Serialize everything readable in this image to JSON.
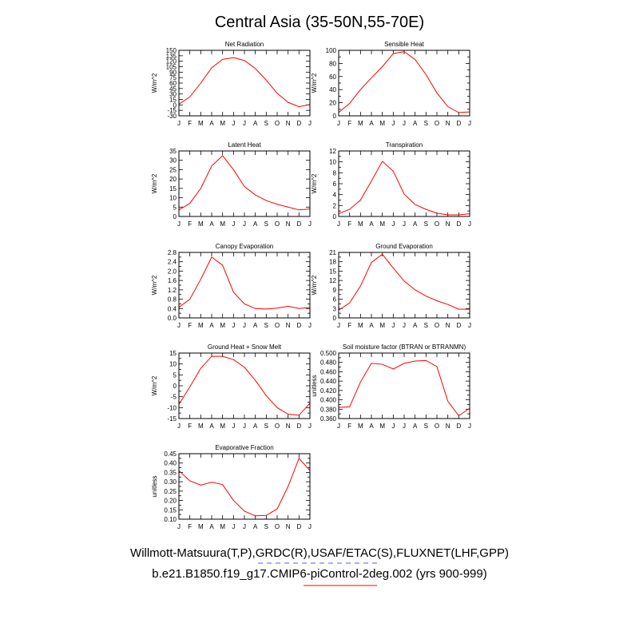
{
  "page": {
    "title": "Central Asia (35-50N,55-70E)",
    "legend_line1": "Willmott-Matsuura(T,P),GRDC(R),USAF/ETAC(S),FLUXNET(LHF,GPP)",
    "legend_line2": "b.e21.B1850.f19_g17.CMIP6-piControl-2deg.002 (yrs 900-999)",
    "legend_line1_color": "#5a5aff",
    "legend_line2_color": "#ff0000",
    "series_color": "#ff0000"
  },
  "chart_data": [
    {
      "type": "line",
      "title": "Net Radiation",
      "ylabel": "W/m^2",
      "x": [
        "J",
        "F",
        "M",
        "A",
        "M",
        "J",
        "J",
        "A",
        "S",
        "O",
        "N",
        "D",
        "J"
      ],
      "ylim": [
        -30,
        150
      ],
      "yticks": [
        -30,
        -15,
        0,
        15,
        30,
        45,
        60,
        75,
        90,
        105,
        120,
        135,
        150
      ],
      "ytick_labels": [
        "-30",
        "-15",
        "0",
        "15",
        "30",
        "45",
        "60",
        "75",
        "90",
        "105",
        "120",
        "135",
        "150"
      ],
      "values": [
        2,
        22,
        60,
        102,
        125,
        130,
        122,
        100,
        68,
        32,
        7,
        -5,
        1
      ]
    },
    {
      "type": "line",
      "title": "Sensible Heat",
      "ylabel": "W/m^2",
      "x": [
        "J",
        "F",
        "M",
        "A",
        "M",
        "J",
        "J",
        "A",
        "S",
        "O",
        "N",
        "D",
        "J"
      ],
      "ylim": [
        0,
        100
      ],
      "yticks": [
        0,
        10,
        20,
        30,
        40,
        50,
        60,
        70,
        80,
        90,
        100
      ],
      "ytick_labels": [
        "0",
        "",
        "20",
        "",
        "40",
        "",
        "60",
        "",
        "80",
        "",
        "100"
      ],
      "values": [
        5,
        19,
        40,
        58,
        75,
        95,
        98,
        86,
        63,
        35,
        14,
        5,
        6
      ]
    },
    {
      "type": "line",
      "title": "Latent Heat",
      "ylabel": "W/m^2",
      "x": [
        "J",
        "F",
        "M",
        "A",
        "M",
        "J",
        "J",
        "A",
        "S",
        "O",
        "N",
        "D",
        "J"
      ],
      "ylim": [
        0,
        35
      ],
      "yticks": [
        0,
        5,
        10,
        15,
        20,
        25,
        30,
        35
      ],
      "ytick_labels": [
        "0",
        "5",
        "10",
        "15",
        "20",
        "25",
        "30",
        "35"
      ],
      "values": [
        3.5,
        7,
        15,
        27,
        32.5,
        25,
        16,
        11.5,
        8.5,
        6.5,
        5,
        3.5,
        4
      ]
    },
    {
      "type": "line",
      "title": "Transpiration",
      "ylabel": "W/m^2",
      "x": [
        "J",
        "F",
        "M",
        "A",
        "M",
        "J",
        "J",
        "A",
        "S",
        "O",
        "N",
        "D",
        "J"
      ],
      "ylim": [
        0,
        12
      ],
      "yticks": [
        0,
        1,
        2,
        3,
        4,
        5,
        6,
        7,
        8,
        9,
        10,
        11,
        12
      ],
      "ytick_labels": [
        "0",
        "",
        "2",
        "",
        "4",
        "",
        "6",
        "",
        "8",
        "",
        "10",
        "",
        "12"
      ],
      "values": [
        0.5,
        1.3,
        3,
        6.5,
        10.1,
        8.3,
        4.1,
        2.2,
        1.3,
        0.6,
        0.3,
        0.3,
        0.5
      ]
    },
    {
      "type": "line",
      "title": "Canopy Evaporation",
      "ylabel": "W/m^2",
      "x": [
        "J",
        "F",
        "M",
        "A",
        "M",
        "J",
        "J",
        "A",
        "S",
        "O",
        "N",
        "D",
        "J"
      ],
      "ylim": [
        0,
        2.8
      ],
      "yticks": [
        0,
        0.2,
        0.4,
        0.6,
        0.8,
        1.0,
        1.2,
        1.4,
        1.6,
        1.8,
        2.0,
        2.2,
        2.4,
        2.6,
        2.8
      ],
      "ytick_labels": [
        "0.0",
        "",
        "0.4",
        "",
        "0.8",
        "",
        "1.2",
        "",
        "1.6",
        "",
        "2.0",
        "",
        "2.4",
        "",
        "2.8"
      ],
      "values": [
        0.45,
        0.8,
        1.65,
        2.6,
        2.25,
        1.1,
        0.6,
        0.4,
        0.38,
        0.42,
        0.5,
        0.4,
        0.45
      ]
    },
    {
      "type": "line",
      "title": "Ground Evaporation",
      "ylabel": "W/m^2",
      "x": [
        "J",
        "F",
        "M",
        "A",
        "M",
        "J",
        "J",
        "A",
        "S",
        "O",
        "N",
        "D",
        "J"
      ],
      "ylim": [
        0,
        21
      ],
      "yticks": [
        0,
        1.5,
        3,
        4.5,
        6,
        7.5,
        9,
        10.5,
        12,
        13.5,
        15,
        16.5,
        18,
        19.5,
        21
      ],
      "ytick_labels": [
        "0",
        "",
        "3",
        "",
        "6",
        "",
        "9",
        "",
        "12",
        "",
        "15",
        "",
        "18",
        "",
        "21"
      ],
      "values": [
        2.5,
        4.8,
        10.2,
        17.8,
        20.4,
        16,
        11.8,
        9,
        7,
        5.5,
        4.3,
        2.8,
        2.8
      ]
    },
    {
      "type": "line",
      "title": "Ground Heat + Snow Melt",
      "ylabel": "W/m^2",
      "x": [
        "J",
        "F",
        "M",
        "A",
        "M",
        "J",
        "J",
        "A",
        "S",
        "O",
        "N",
        "D",
        "J"
      ],
      "ylim": [
        -15,
        15
      ],
      "yticks": [
        -15,
        -12.5,
        -10,
        -7.5,
        -5,
        -2.5,
        0,
        2.5,
        5,
        7.5,
        10,
        12.5,
        15
      ],
      "ytick_labels": [
        "-15",
        "",
        "-10",
        "",
        "-5",
        "",
        "0",
        "",
        "5",
        "",
        "10",
        "",
        "15"
      ],
      "values": [
        -8.5,
        -0.5,
        8,
        13.5,
        13.5,
        12,
        8.5,
        2.5,
        -4.5,
        -10,
        -13,
        -13.5,
        -8
      ]
    },
    {
      "type": "line",
      "title": "Soil moisture factor (BTRAN or BTRANMN)",
      "ylabel": "unitless",
      "x": [
        "J",
        "F",
        "M",
        "A",
        "M",
        "J",
        "J",
        "A",
        "S",
        "O",
        "N",
        "D",
        "J"
      ],
      "ylim": [
        0.36,
        0.5
      ],
      "yticks": [
        0.36,
        0.37,
        0.38,
        0.39,
        0.4,
        0.41,
        0.42,
        0.43,
        0.44,
        0.45,
        0.46,
        0.47,
        0.48,
        0.49,
        0.5
      ],
      "ytick_labels": [
        "0.360",
        "",
        "0.380",
        "",
        "0.400",
        "",
        "0.420",
        "",
        "0.440",
        "",
        "0.460",
        "",
        "0.480",
        "",
        "0.500"
      ],
      "values": [
        0.384,
        0.385,
        0.438,
        0.478,
        0.476,
        0.466,
        0.478,
        0.483,
        0.484,
        0.471,
        0.397,
        0.366,
        0.382
      ]
    },
    {
      "type": "line",
      "title": "Evaporative Fraction",
      "ylabel": "unitless",
      "x": [
        "J",
        "F",
        "M",
        "A",
        "M",
        "J",
        "J",
        "A",
        "S",
        "O",
        "N",
        "D",
        "J"
      ],
      "ylim": [
        0.1,
        0.45
      ],
      "yticks": [
        0.1,
        0.125,
        0.15,
        0.175,
        0.2,
        0.225,
        0.25,
        0.275,
        0.3,
        0.325,
        0.35,
        0.375,
        0.4,
        0.425,
        0.45
      ],
      "ytick_labels": [
        "0.10",
        "",
        "0.15",
        "",
        "0.20",
        "",
        "0.25",
        "",
        "0.30",
        "",
        "0.35",
        "",
        "0.40",
        "",
        "0.45"
      ],
      "values": [
        0.36,
        0.305,
        0.282,
        0.298,
        0.285,
        0.2,
        0.143,
        0.118,
        0.12,
        0.155,
        0.275,
        0.425,
        0.36
      ]
    }
  ]
}
